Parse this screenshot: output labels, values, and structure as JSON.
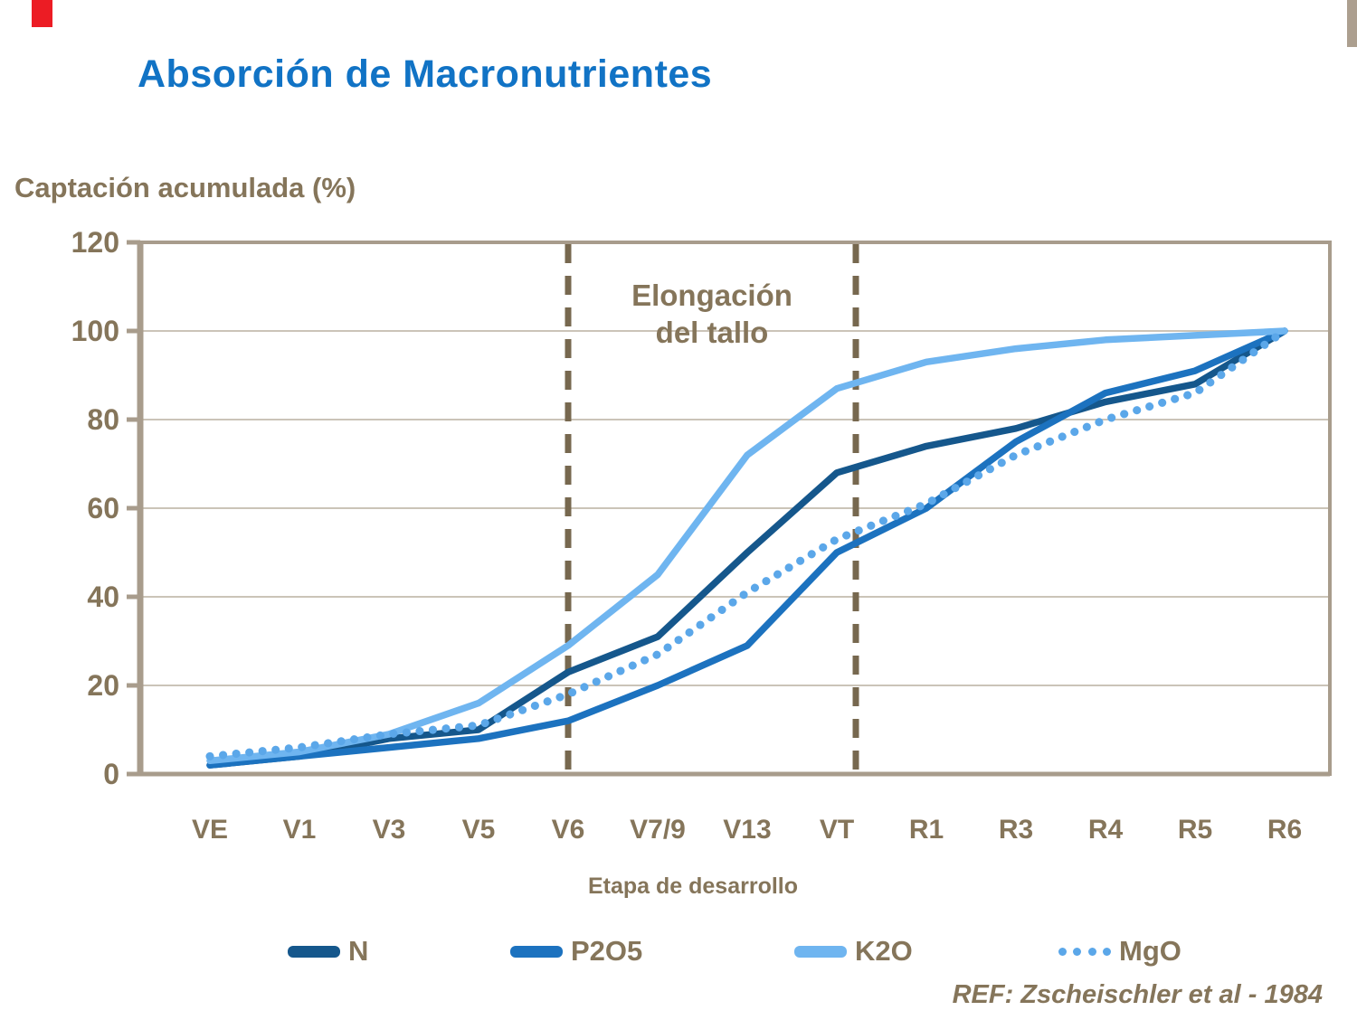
{
  "page": {
    "title": "Absorción de Macronutrientes",
    "y_axis_label": "Captación acumulada (%)",
    "x_axis_label": "Etapa de desarrollo",
    "annotation": "Elongación\ndel tallo",
    "reference": "REF: Zscheischler et al - 1984"
  },
  "colors": {
    "title_blue": "#1173C5",
    "text_brown": "#85755A",
    "axis_tan": "#A89C8C",
    "gridline": "#CBC4B8",
    "dashed_line": "#77684F",
    "accent_red": "#EC1C24"
  },
  "chart_data": {
    "type": "line",
    "title": "Absorción de Macronutrientes",
    "xlabel": "Etapa de desarrollo",
    "ylabel": "Captación acumulada (%)",
    "categories": [
      "VE",
      "V1",
      "V3",
      "V5",
      "V6",
      "V7/9",
      "V13",
      "VT",
      "R1",
      "R3",
      "R4",
      "R5",
      "R6"
    ],
    "yticks": [
      120,
      100,
      80,
      60,
      40,
      20,
      0
    ],
    "ylim": [
      0,
      120
    ],
    "grid": "horizontal",
    "legend_position": "bottom",
    "annotation_text": "Elongación del tallo",
    "annotation_lines_at": [
      "V6",
      "VT"
    ],
    "series": [
      {
        "name": "N",
        "color": "#15578C",
        "style": "solid",
        "values": [
          2,
          4,
          8,
          10,
          23,
          31,
          50,
          68,
          74,
          78,
          84,
          88,
          100
        ]
      },
      {
        "name": "P2O5",
        "color": "#1C72BF",
        "style": "solid",
        "values": [
          2,
          4,
          6,
          8,
          12,
          20,
          29,
          50,
          60,
          75,
          86,
          91,
          100
        ]
      },
      {
        "name": "K2O",
        "color": "#6FB5F0",
        "style": "solid",
        "values": [
          3,
          5,
          9,
          16,
          29,
          45,
          72,
          87,
          93,
          96,
          98,
          99,
          100
        ]
      },
      {
        "name": "MgO",
        "color": "#5BA7E9",
        "style": "dotted",
        "values": [
          4,
          6,
          9,
          11,
          18,
          27,
          41,
          53,
          61,
          72,
          80,
          86,
          100
        ]
      }
    ]
  }
}
